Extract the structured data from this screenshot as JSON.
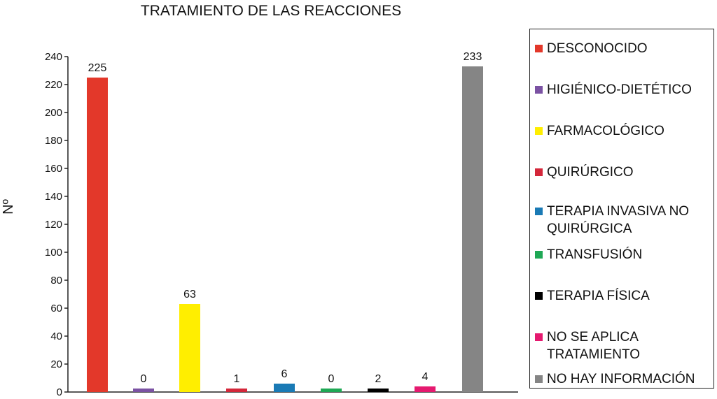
{
  "chart_data": {
    "type": "bar",
    "title": "TRATAMIENTO DE LAS REACCIONES",
    "xlabel": "",
    "ylabel": "Nº",
    "ylim": [
      0,
      240
    ],
    "yticks": [
      "0",
      "20",
      "40",
      "60",
      "80",
      "100",
      "120",
      "140",
      "160",
      "180",
      "200",
      "220",
      "240"
    ],
    "categories": [
      "DESCONOCIDO",
      "HIGIÉNICO-DIETÉTICO",
      "FARMACOLÓGICO",
      "QUIRÚRGICO",
      "TERAPIA INVASIVA NO QUIRÚRGICA",
      "TRANSFUSIÓN",
      "TERAPIA FÍSICA",
      "NO SE APLICA TRATAMIENTO",
      "NO HAY INFORMACIÓN"
    ],
    "values": [
      225,
      0,
      63,
      1,
      6,
      0,
      2,
      4,
      233
    ],
    "data_labels": [
      "225",
      "0",
      "63",
      "1",
      "6",
      "0",
      "2",
      "4",
      "233"
    ],
    "colors": [
      "#e3382a",
      "#7b52a3",
      "#ffee00",
      "#d4273a",
      "#1a7ab5",
      "#1fa855",
      "#000000",
      "#e5196f",
      "#858585"
    ],
    "grid": false,
    "legend_placement": "right"
  }
}
